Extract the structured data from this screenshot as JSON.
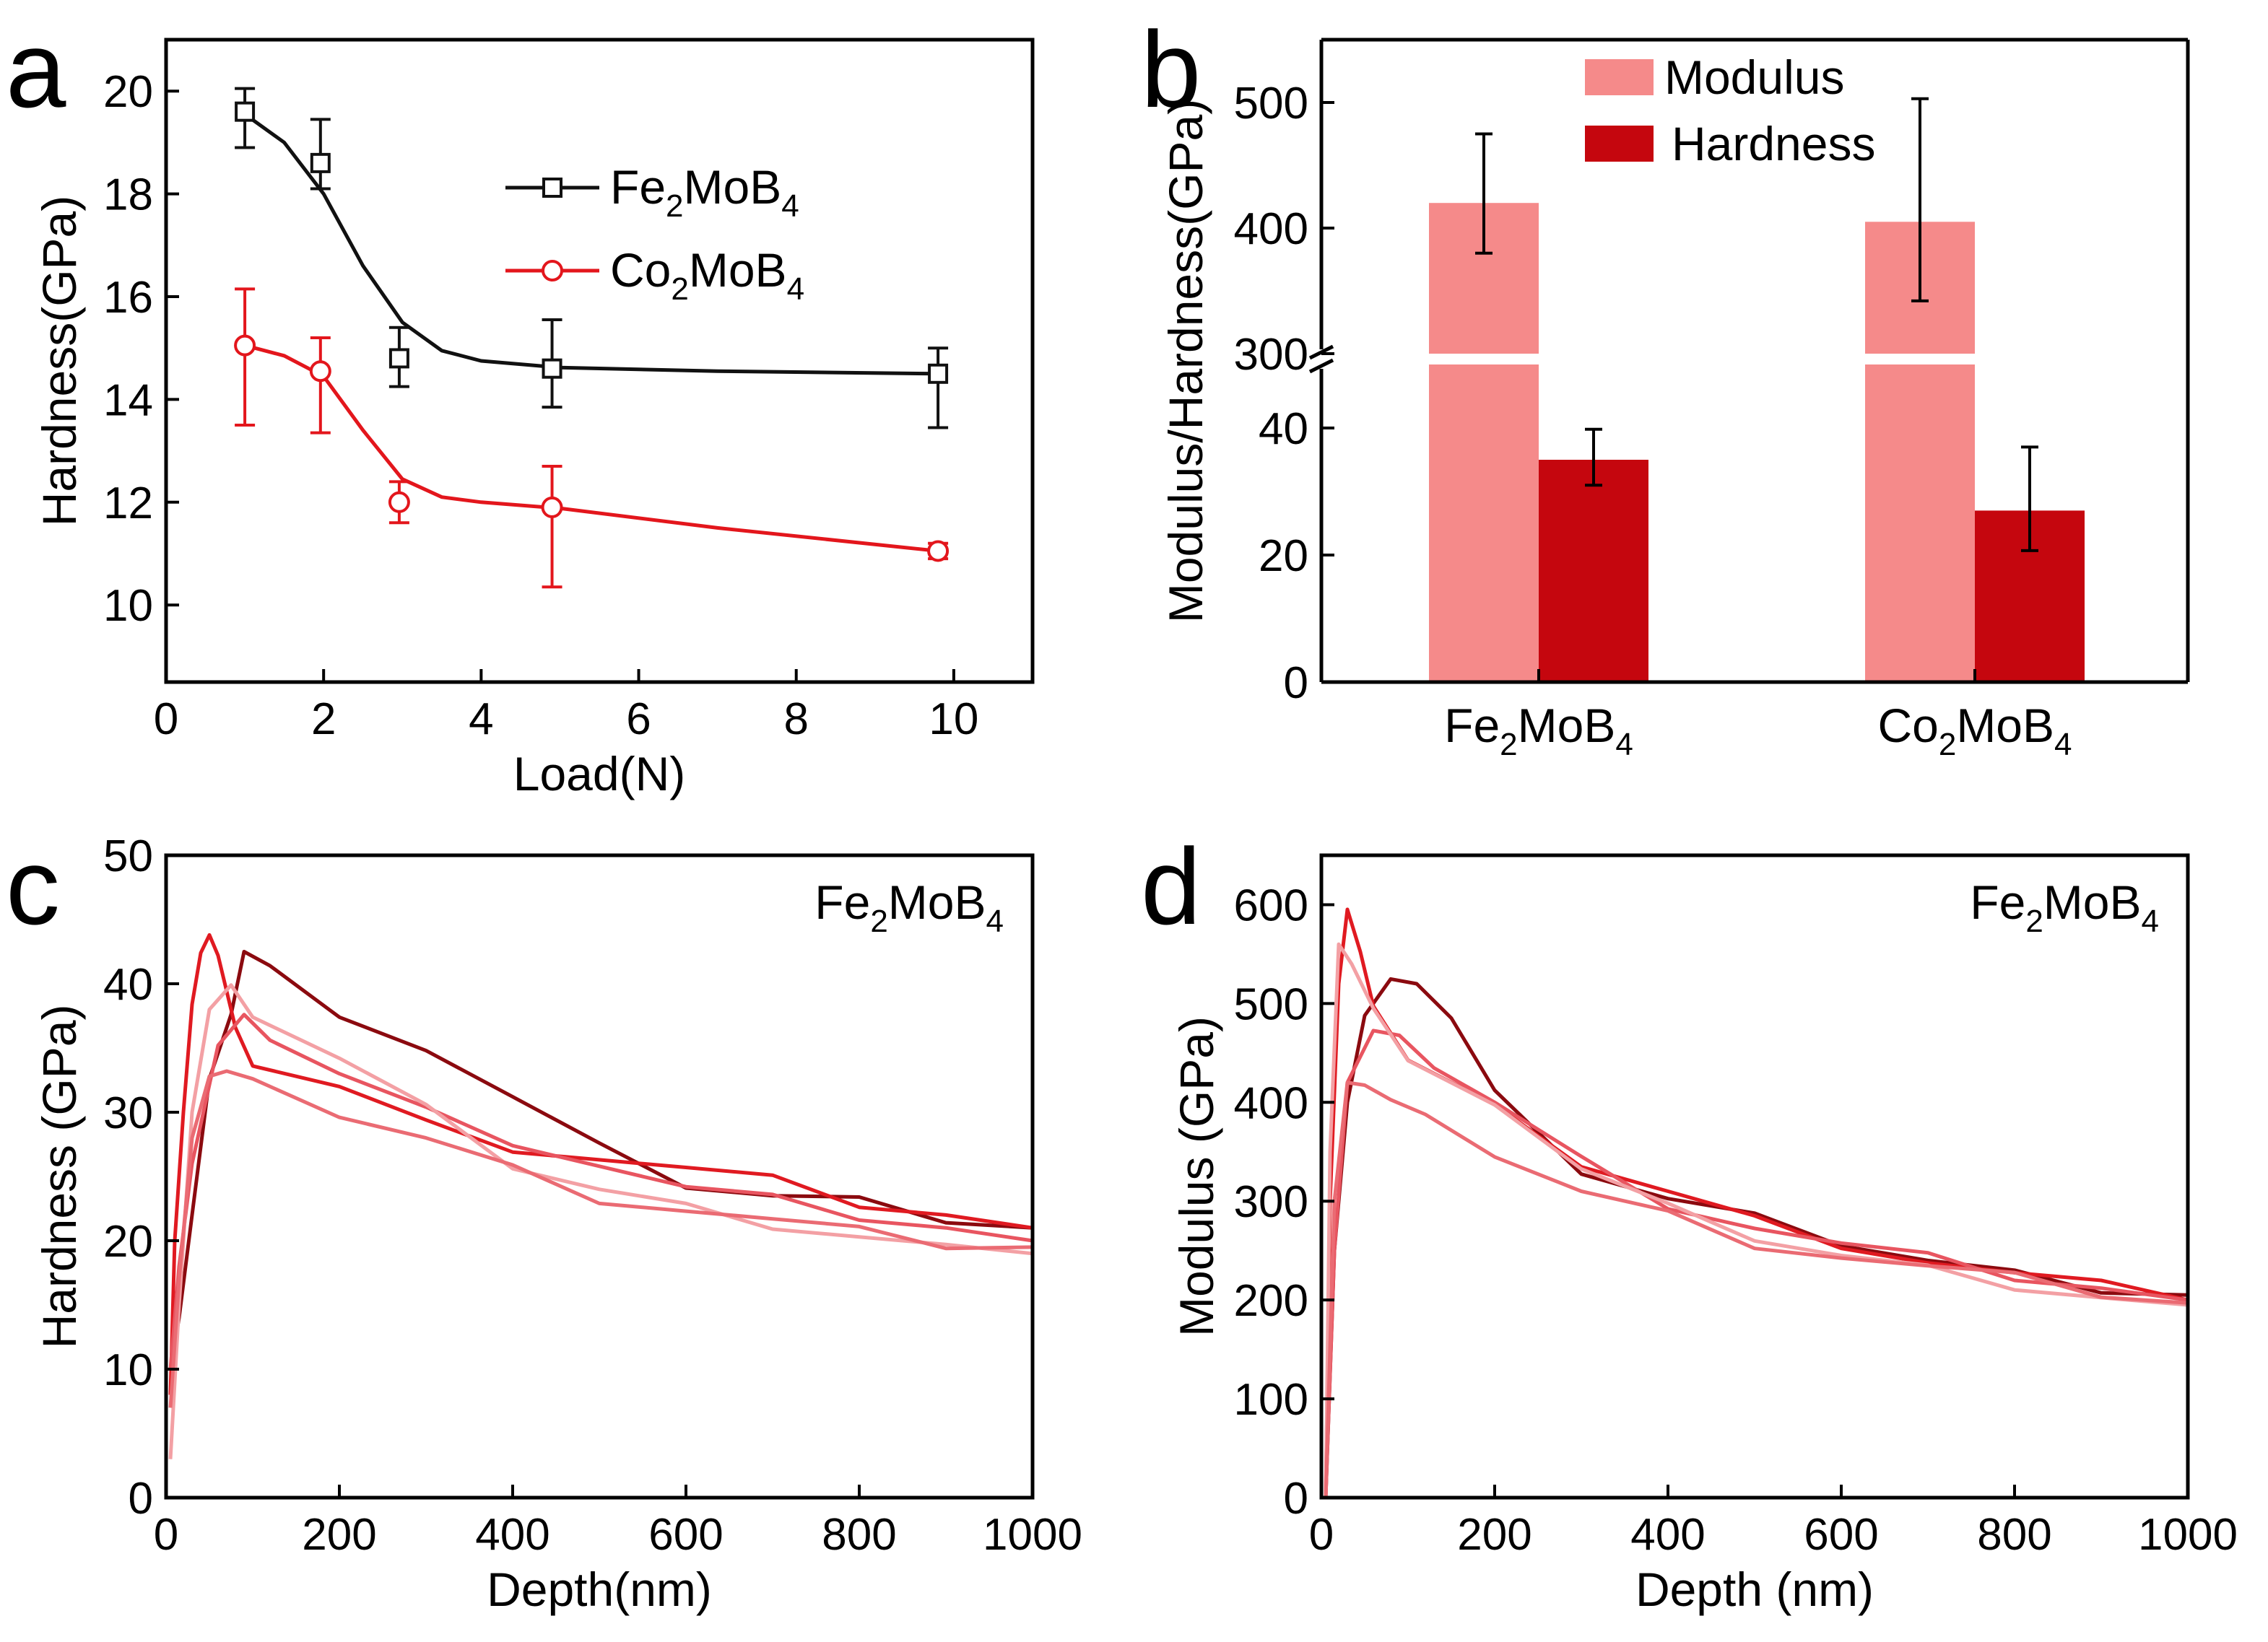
{
  "chart_data": [
    {
      "panel": "a",
      "type": "scatter",
      "xlabel": "Load(N)",
      "ylabel": "Hardness(GPa)",
      "xlim": [
        0,
        11
      ],
      "ylim": [
        8.5,
        21
      ],
      "xticks": [
        "0",
        "2",
        "4",
        "6",
        "8",
        "10"
      ],
      "yticks": [
        "10",
        "12",
        "14",
        "16",
        "18",
        "20"
      ],
      "legend_position": "top-right",
      "series": [
        {
          "name": "Fe2MoB4",
          "label_base": "Fe",
          "label_sub1": "2",
          "label_mid": "MoB",
          "label_sub2": "4",
          "color": "#111111",
          "marker": "square",
          "x": [
            1,
            1.96,
            2.96,
            4.9,
            9.8
          ],
          "y": [
            19.6,
            18.6,
            14.8,
            14.6,
            14.5
          ],
          "err_hi": [
            0.45,
            0.85,
            0.6,
            0.95,
            0.5
          ],
          "err_lo": [
            0.7,
            0.5,
            0.55,
            0.75,
            1.05
          ],
          "fit": [
            [
              1,
              19.55
            ],
            [
              1.5,
              19.0
            ],
            [
              2.0,
              18.0
            ],
            [
              2.5,
              16.6
            ],
            [
              3.0,
              15.5
            ],
            [
              3.5,
              14.95
            ],
            [
              4.0,
              14.75
            ],
            [
              5.0,
              14.62
            ],
            [
              7.0,
              14.55
            ],
            [
              9.8,
              14.5
            ]
          ]
        },
        {
          "name": "Co2MoB4",
          "label_base": "Co",
          "label_sub1": "2",
          "label_mid": "MoB",
          "label_sub2": "4",
          "color": "#e3161c",
          "marker": "circle",
          "x": [
            1,
            1.96,
            2.96,
            4.9,
            9.8
          ],
          "y": [
            15.05,
            14.55,
            12.0,
            11.9,
            11.05
          ],
          "err_hi": [
            1.1,
            0.65,
            0.4,
            0.8,
            0.15
          ],
          "err_lo": [
            1.55,
            1.2,
            0.4,
            1.55,
            0.15
          ],
          "fit": [
            [
              1,
              15.05
            ],
            [
              1.5,
              14.85
            ],
            [
              2.0,
              14.45
            ],
            [
              2.5,
              13.4
            ],
            [
              3.0,
              12.45
            ],
            [
              3.5,
              12.1
            ],
            [
              4.0,
              12.0
            ],
            [
              5.0,
              11.88
            ],
            [
              7.0,
              11.5
            ],
            [
              9.8,
              11.05
            ]
          ]
        }
      ]
    },
    {
      "panel": "b",
      "type": "bar",
      "ylabel": "Modulus/Hardness(GPa)",
      "categories": [
        {
          "base": "Fe",
          "sub1": "2",
          "mid": "MoB",
          "sub2": "4"
        },
        {
          "base": "Co",
          "sub1": "2",
          "mid": "MoB",
          "sub2": "4"
        }
      ],
      "axis_break": {
        "lower": [
          0,
          50
        ],
        "upper": [
          300,
          550
        ]
      },
      "yticks_lower": [
        "0",
        "20",
        "40"
      ],
      "yticks_upper": [
        "300",
        "400",
        "500"
      ],
      "legend_position": "top-center",
      "series": [
        {
          "name": "Modulus",
          "color": "#f58a8a",
          "values": [
            420,
            405
          ],
          "err_hi": [
            55,
            98
          ],
          "err_lo": [
            40,
            63
          ]
        },
        {
          "name": "Hardness",
          "color": "#c5060e",
          "values": [
            35,
            27
          ],
          "err_hi": [
            4.8,
            10
          ],
          "err_lo": [
            4,
            6.3
          ]
        }
      ]
    },
    {
      "panel": "c",
      "type": "line",
      "xlabel": "Depth(nm)",
      "ylabel": "Hardness (GPa)",
      "xlim": [
        0,
        1000
      ],
      "ylim": [
        0,
        50
      ],
      "xticks": [
        "0",
        "200",
        "400",
        "600",
        "800",
        "1000"
      ],
      "yticks": [
        "0",
        "10",
        "20",
        "30",
        "40",
        "50"
      ],
      "annotation": {
        "base": "Fe",
        "sub1": "2",
        "mid": "MoB",
        "sub2": "4"
      },
      "series": [
        {
          "color": "#8b0a0f",
          "x": [
            5,
            15,
            30,
            50,
            75,
            90,
            120,
            200,
            300,
            400,
            500,
            600,
            700,
            800,
            900,
            1000
          ],
          "y": [
            10,
            14,
            22,
            32,
            38,
            42.5,
            41,
            38,
            35,
            31,
            27,
            24.5,
            23.5,
            23,
            22,
            21
          ]
        },
        {
          "color": "#e01a21",
          "x": [
            5,
            10,
            20,
            30,
            40,
            50,
            60,
            80,
            100,
            200,
            300,
            400,
            500,
            600,
            700,
            800,
            900,
            1000
          ],
          "y": [
            8,
            20,
            30,
            38,
            43,
            44,
            42,
            36,
            34,
            32,
            29,
            27.5,
            26.5,
            25.5,
            24.5,
            23,
            22,
            21
          ]
        },
        {
          "color": "#e85560",
          "x": [
            5,
            15,
            30,
            60,
            90,
            120,
            200,
            300,
            400,
            500,
            600,
            700,
            800,
            900,
            1000
          ],
          "y": [
            10,
            18,
            26,
            35,
            37,
            36,
            33,
            30,
            28,
            26,
            24,
            23,
            22,
            21,
            20
          ]
        },
        {
          "color": "#f3a0a4",
          "x": [
            5,
            15,
            30,
            50,
            75,
            100,
            150,
            200,
            300,
            400,
            500,
            600,
            700,
            800,
            900,
            1000
          ],
          "y": [
            3,
            15,
            30,
            38,
            39.5,
            38,
            36,
            34,
            30,
            26,
            24,
            22.5,
            21.5,
            20.5,
            19.5,
            19
          ]
        },
        {
          "color": "#ea6b73",
          "x": [
            5,
            15,
            30,
            50,
            70,
            100,
            200,
            300,
            400,
            500,
            600,
            700,
            800,
            900,
            1000
          ],
          "y": [
            7,
            17,
            28,
            33,
            33,
            32,
            30,
            28,
            25.5,
            23.5,
            22.5,
            21.5,
            20.5,
            19.8,
            19.5
          ]
        }
      ]
    },
    {
      "panel": "d",
      "type": "line",
      "xlabel": "Depth (nm)",
      "ylabel": "Modulus (GPa)",
      "xlim": [
        0,
        1000
      ],
      "ylim": [
        0,
        650
      ],
      "xticks": [
        "0",
        "200",
        "400",
        "600",
        "800",
        "1000"
      ],
      "yticks": [
        "0",
        "100",
        "200",
        "300",
        "400",
        "500",
        "600"
      ],
      "annotation": {
        "base": "Fe",
        "sub1": "2",
        "mid": "MoB",
        "sub2": "4"
      },
      "series": [
        {
          "color": "#8b0a0f",
          "x": [
            5,
            15,
            30,
            50,
            80,
            110,
            150,
            200,
            300,
            400,
            500,
            600,
            700,
            800,
            900,
            1000
          ],
          "y": [
            0,
            250,
            400,
            480,
            530,
            520,
            480,
            420,
            330,
            300,
            280,
            260,
            240,
            225,
            215,
            205
          ]
        },
        {
          "color": "#e01a21",
          "x": [
            5,
            10,
            20,
            30,
            45,
            60,
            100,
            200,
            300,
            400,
            500,
            600,
            700,
            800,
            900,
            1000
          ],
          "y": [
            0,
            300,
            520,
            590,
            560,
            500,
            440,
            390,
            340,
            310,
            280,
            260,
            240,
            225,
            212,
            200
          ]
        },
        {
          "color": "#e85560",
          "x": [
            5,
            15,
            30,
            60,
            90,
            130,
            200,
            300,
            400,
            500,
            600,
            700,
            800,
            900,
            1000
          ],
          "y": [
            0,
            250,
            420,
            470,
            460,
            440,
            400,
            340,
            300,
            275,
            255,
            240,
            225,
            212,
            200
          ]
        },
        {
          "color": "#f3a0a4",
          "x": [
            5,
            10,
            20,
            35,
            60,
            100,
            200,
            300,
            400,
            500,
            600,
            700,
            800,
            900,
            1000
          ],
          "y": [
            0,
            350,
            560,
            540,
            490,
            450,
            400,
            330,
            290,
            265,
            245,
            230,
            218,
            205,
            195
          ]
        },
        {
          "color": "#ea6b73",
          "x": [
            5,
            15,
            30,
            50,
            80,
            120,
            200,
            300,
            400,
            500,
            600,
            700,
            800,
            900,
            1000
          ],
          "y": [
            0,
            300,
            420,
            420,
            400,
            380,
            350,
            310,
            285,
            260,
            245,
            232,
            220,
            208,
            197
          ]
        }
      ]
    }
  ]
}
